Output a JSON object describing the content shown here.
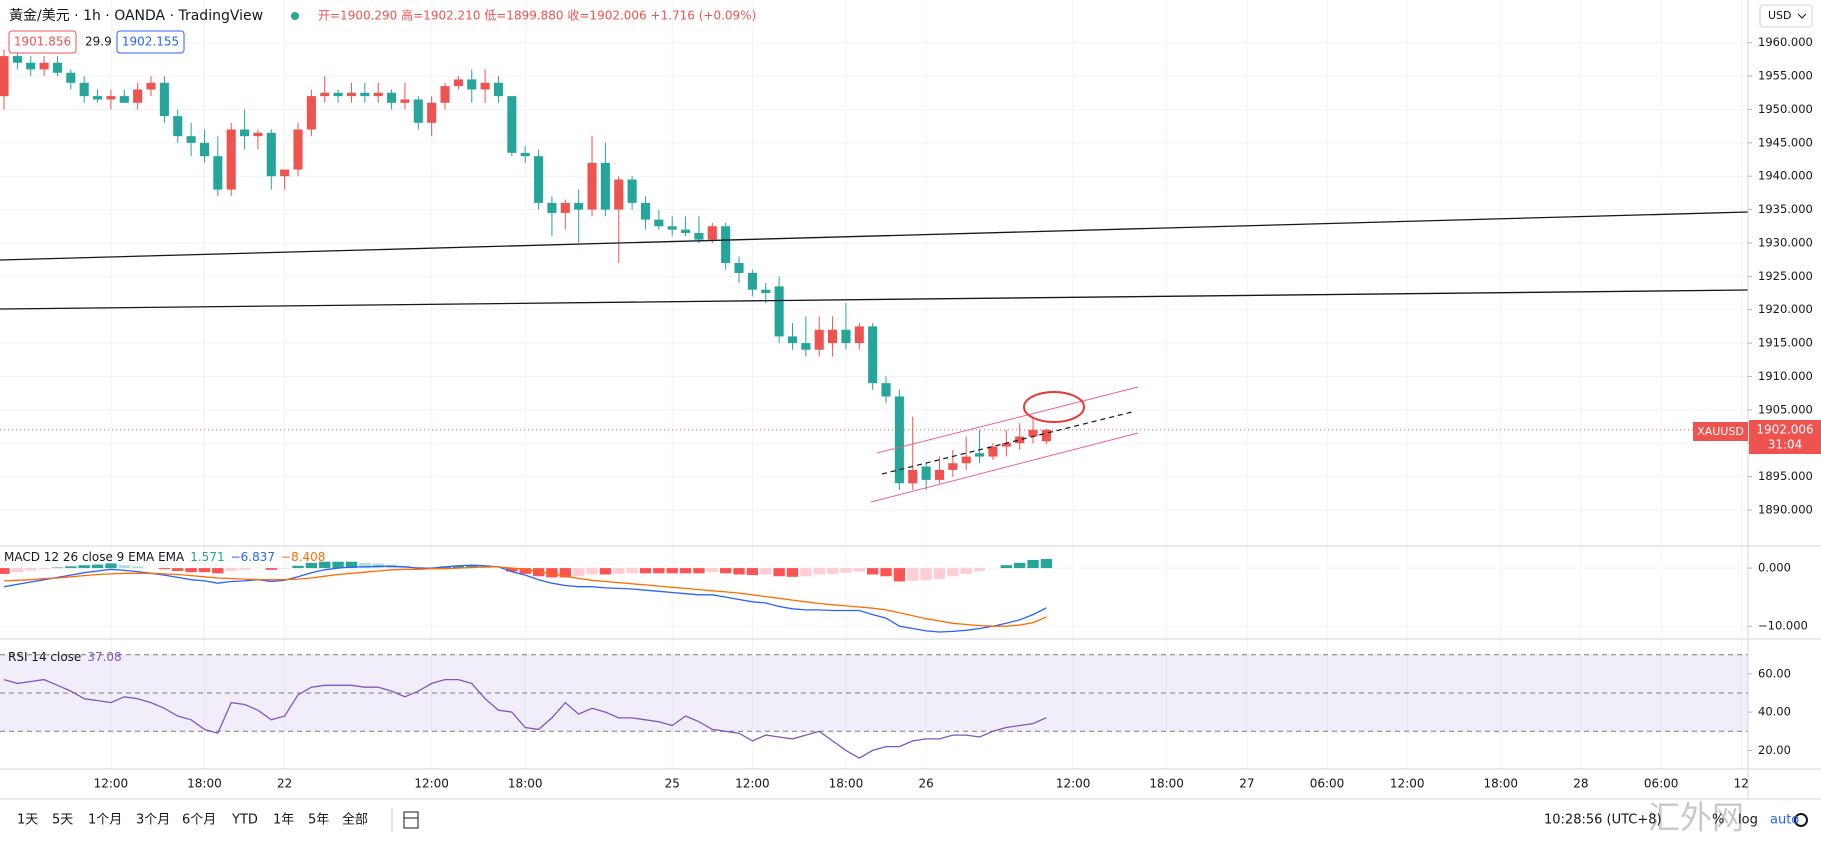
{
  "header": {
    "symbol": "黃金/美元 · 1h · OANDA · TradingView",
    "ohlc": "开=1900.290 高=1902.210 低=1899.880 收=1902.006 +1.716 (+0.09%)",
    "sell": "1901.856",
    "spread": "29.9",
    "buy": "1902.155",
    "currency": "USD",
    "ticker": "XAUUSD",
    "countdown": "31:04"
  },
  "toolbar": {
    "ranges": [
      "1天",
      "5天",
      "1个月",
      "3个月",
      "6个月",
      "YTD",
      "1年",
      "5年",
      "全部"
    ],
    "clock": "10:28:56 (UTC+8)",
    "options": [
      "%",
      "log",
      "auto"
    ]
  },
  "watermark": "汇外网",
  "chart_data": [
    {
      "type": "candlestick",
      "up_color": "#ef5350",
      "down_color": "#26a69a",
      "grid": true,
      "xlim": [
        -0.3,
        130.5
      ],
      "xticks": [
        {
          "value": 8,
          "label": "12:00"
        },
        {
          "value": 15,
          "label": "18:00"
        },
        {
          "value": 21,
          "label": "22"
        },
        {
          "value": 32,
          "label": "12:00"
        },
        {
          "value": 39,
          "label": "18:00"
        },
        {
          "value": 50,
          "label": "25"
        },
        {
          "value": 56,
          "label": "12:00"
        },
        {
          "value": 63,
          "label": "18:00"
        },
        {
          "value": 69,
          "label": "26"
        },
        {
          "value": 80,
          "label": "12:00"
        },
        {
          "value": 87,
          "label": "18:00"
        },
        {
          "value": 93,
          "label": "27"
        },
        {
          "value": 99,
          "label": "06:00"
        },
        {
          "value": 105,
          "label": "12:00"
        },
        {
          "value": 112,
          "label": "18:00"
        },
        {
          "value": 118,
          "label": "28"
        },
        {
          "value": 124,
          "label": "06:00"
        },
        {
          "value": 130,
          "label": "12"
        }
      ],
      "ylim": [
        1884.6,
        1966.4
      ],
      "yticks": [
        {
          "value": 1890,
          "label": "1890.000"
        },
        {
          "value": 1895,
          "label": "1895.000"
        },
        {
          "value": 1900,
          "label": "1900.000"
        },
        {
          "value": 1905,
          "label": "1905.000"
        },
        {
          "value": 1910,
          "label": "1910.000"
        },
        {
          "value": 1915,
          "label": "1915.000"
        },
        {
          "value": 1920,
          "label": "1920.000"
        },
        {
          "value": 1925,
          "label": "1925.000"
        },
        {
          "value": 1930,
          "label": "1930.000"
        },
        {
          "value": 1935,
          "label": "1935.000"
        },
        {
          "value": 1940,
          "label": "1940.000"
        },
        {
          "value": 1945,
          "label": "1945.000"
        },
        {
          "value": 1950,
          "label": "1950.000"
        },
        {
          "value": 1955,
          "label": "1955.000"
        },
        {
          "value": 1960,
          "label": "1960.000"
        }
      ],
      "open": [
        1952,
        1958,
        1957,
        1956,
        1957,
        1955.5,
        1954,
        1952,
        1951.5,
        1952,
        1951,
        1953,
        1954,
        1949,
        1946,
        1945,
        1943,
        1938,
        1947,
        1946,
        1946.5,
        1940,
        1941,
        1947,
        1952,
        1952.5,
        1952,
        1952.5,
        1952,
        1952.5,
        1951,
        1951.5,
        1948,
        1951,
        1953.5,
        1954.5,
        1953,
        1954,
        1952,
        1943.5,
        1943,
        1936,
        1934.5,
        1936,
        1935,
        1942,
        1935,
        1939.5,
        1936,
        1933.5,
        1932.5,
        1932,
        1931.5,
        1930.5,
        1932.5,
        1927,
        1925.5,
        1923,
        1923.5,
        1916,
        1915,
        1914,
        1915,
        1917,
        1915,
        1917.5,
        1909,
        1907,
        1894,
        1896.5,
        1894.5,
        1896,
        1897,
        1898.5,
        1898,
        1899.5,
        1900,
        1901,
        1900.29
      ],
      "high": [
        1959,
        1959,
        1958,
        1958,
        1958,
        1956,
        1955,
        1953,
        1953,
        1953,
        1954,
        1955,
        1955,
        1950,
        1948,
        1947,
        1946,
        1948,
        1950,
        1947,
        1947,
        1941,
        1948,
        1953,
        1955,
        1953,
        1954,
        1954,
        1954,
        1953,
        1954,
        1952,
        1952,
        1954,
        1955,
        1956,
        1956,
        1955,
        1952,
        1944.5,
        1944,
        1937,
        1936.5,
        1938,
        1946,
        1945,
        1940,
        1940,
        1937,
        1935,
        1934,
        1934,
        1934,
        1933,
        1933,
        1928,
        1926,
        1924,
        1925,
        1918,
        1919,
        1919,
        1919,
        1921,
        1918,
        1918,
        1910,
        1908,
        1904,
        1897,
        1898,
        1899,
        1901,
        1902,
        1900,
        1902,
        1903,
        1904,
        1902.21
      ],
      "low": [
        1950,
        1956,
        1955,
        1955,
        1955,
        1953,
        1951,
        1951,
        1950,
        1951,
        1950,
        1952,
        1948,
        1945,
        1943,
        1942,
        1937,
        1937,
        1944,
        1944,
        1938,
        1938,
        1940,
        1946,
        1951,
        1951,
        1951,
        1951,
        1951,
        1950,
        1950,
        1947,
        1946,
        1950,
        1953,
        1951,
        1951,
        1951,
        1943,
        1942,
        1935,
        1931,
        1932,
        1930,
        1934,
        1934,
        1927,
        1935,
        1932,
        1932,
        1931,
        1931,
        1930,
        1930,
        1926,
        1924,
        1922,
        1921,
        1915,
        1914,
        1913,
        1913,
        1913,
        1914,
        1914,
        1908,
        1906,
        1893,
        1893,
        1893,
        1894,
        1895,
        1896,
        1897,
        1897.5,
        1898,
        1899,
        1900,
        1899.88
      ],
      "close": [
        1958,
        1957,
        1956,
        1957,
        1955.5,
        1954,
        1952,
        1951.5,
        1952,
        1951,
        1953,
        1954,
        1949,
        1946,
        1945,
        1943,
        1938,
        1947,
        1946,
        1946.5,
        1940,
        1941,
        1947,
        1952,
        1952.5,
        1952,
        1952.5,
        1952,
        1952.5,
        1951,
        1951.5,
        1948,
        1951,
        1953.5,
        1954.5,
        1953,
        1954,
        1952,
        1943.5,
        1943,
        1936,
        1934.5,
        1936,
        1935,
        1942,
        1935,
        1939.5,
        1936,
        1933.5,
        1932.5,
        1932,
        1931.5,
        1930.5,
        1932.5,
        1927,
        1925.5,
        1923,
        1922.5,
        1916,
        1915,
        1914,
        1917,
        1917,
        1915,
        1917.5,
        1909,
        1907,
        1894,
        1896,
        1894.5,
        1896,
        1897,
        1898,
        1898,
        1899.5,
        1900,
        1901,
        1902,
        1902.006
      ]
    },
    {
      "type": "macd",
      "label": "MACD 12 26 close 9 EMA EMA",
      "readout": [
        "1.571",
        "−6.837",
        "−8.408"
      ],
      "ylim": [
        -12.2,
        3.8
      ],
      "yticks": [
        {
          "value": 0,
          "label": "0.000"
        },
        {
          "value": -10,
          "label": "−10.000"
        }
      ],
      "histogram_colors": [
        "#26a69a",
        "#b2dfdb",
        "#ffcdd2",
        "#ff5252"
      ],
      "histogram": [
        -1.0,
        -0.7,
        -0.4,
        -0.2,
        0.1,
        0.3,
        0.5,
        0.6,
        0.8,
        0.5,
        0.3,
        0,
        -0.2,
        -0.5,
        -0.7,
        -0.7,
        -0.9,
        -0.5,
        -0.3,
        0,
        -0.3,
        -0.1,
        0.4,
        0.9,
        1.1,
        1.1,
        1.1,
        0.9,
        0.8,
        0.6,
        0.4,
        0.2,
        0.1,
        0.3,
        0.4,
        0.4,
        0.2,
        0,
        -0.6,
        -1.0,
        -1.4,
        -1.6,
        -1.6,
        -1.4,
        -1.1,
        -1.1,
        -1.0,
        -0.9,
        -0.9,
        -0.9,
        -0.9,
        -0.9,
        -0.9,
        -0.7,
        -0.9,
        -1.1,
        -1.2,
        -1.1,
        -1.4,
        -1.5,
        -1.4,
        -1.1,
        -1.0,
        -0.8,
        -0.6,
        -1.1,
        -1.4,
        -2.3,
        -2.2,
        -2.1,
        -1.9,
        -1.4,
        -1.0,
        -0.5,
        0,
        0.5,
        0.9,
        1.4,
        1.571
      ],
      "series": [
        {
          "color": "#2962ff",
          "values": [
            -3.2,
            -2.8,
            -2.4,
            -2,
            -1.6,
            -1.2,
            -0.8,
            -0.5,
            -0.2,
            -0.4,
            -0.6,
            -0.9,
            -1.2,
            -1.6,
            -2.0,
            -2.2,
            -2.6,
            -2.3,
            -2.2,
            -2.0,
            -2.3,
            -2.1,
            -1.5,
            -0.8,
            -0.3,
            0,
            0.2,
            0.2,
            0.3,
            0.3,
            0.2,
            0,
            0,
            0.2,
            0.4,
            0.5,
            0.4,
            0.2,
            -0.6,
            -1.2,
            -2.0,
            -2.6,
            -3.0,
            -3.2,
            -3.2,
            -3.4,
            -3.5,
            -3.6,
            -3.8,
            -4.0,
            -4.2,
            -4.4,
            -4.6,
            -4.6,
            -5.0,
            -5.4,
            -5.8,
            -6.0,
            -6.6,
            -7.0,
            -7.2,
            -7.2,
            -7.3,
            -7.3,
            -7.3,
            -8.0,
            -8.6,
            -10.0,
            -10.4,
            -10.8,
            -11.0,
            -10.9,
            -10.7,
            -10.4,
            -10.0,
            -9.5,
            -8.9,
            -8.0,
            -6.837
          ]
        },
        {
          "color": "#ff6d00",
          "values": [
            -2.2,
            -2.1,
            -2.0,
            -1.8,
            -1.7,
            -1.5,
            -1.3,
            -1.1,
            -1.0,
            -0.9,
            -0.9,
            -0.9,
            -1.0,
            -1.1,
            -1.3,
            -1.5,
            -1.7,
            -1.8,
            -1.9,
            -2.0,
            -2.0,
            -2.0,
            -1.9,
            -1.7,
            -1.4,
            -1.1,
            -0.9,
            -0.7,
            -0.5,
            -0.3,
            -0.2,
            -0.2,
            -0.1,
            -0.1,
            0,
            0.1,
            0.2,
            0.2,
            0,
            -0.2,
            -0.6,
            -1.0,
            -1.4,
            -1.8,
            -2.1,
            -2.3,
            -2.5,
            -2.7,
            -2.9,
            -3.1,
            -3.3,
            -3.5,
            -3.7,
            -3.9,
            -4.1,
            -4.3,
            -4.6,
            -4.9,
            -5.2,
            -5.5,
            -5.8,
            -6.1,
            -6.3,
            -6.5,
            -6.7,
            -6.9,
            -7.2,
            -7.7,
            -8.2,
            -8.7,
            -9.1,
            -9.5,
            -9.7,
            -9.9,
            -10.0,
            -10.0,
            -9.8,
            -9.4,
            -8.408
          ]
        }
      ]
    },
    {
      "type": "rsi",
      "label": "RSI 14 close",
      "readout": [
        "37.08"
      ],
      "ylim": [
        10.3,
        78.2
      ],
      "yticks": [
        {
          "value": 20,
          "label": "20.00"
        },
        {
          "value": 40,
          "label": "40.00"
        },
        {
          "value": 60,
          "label": "60.00"
        }
      ],
      "band": [
        30,
        70
      ],
      "levels": [
        70,
        50,
        30
      ],
      "band_color": "#7e57c2",
      "series": [
        {
          "color": "#7e57c2",
          "values": [
            57,
            55,
            56,
            57,
            54,
            51,
            47,
            46,
            45,
            48,
            47,
            45,
            42,
            38,
            36,
            31,
            29,
            45,
            44,
            41,
            36,
            38,
            49,
            53,
            54,
            54,
            54,
            53,
            53,
            51,
            48,
            51,
            55,
            57,
            57,
            55,
            47,
            41,
            40,
            32,
            31,
            37,
            45,
            39,
            42,
            40,
            37,
            37,
            36,
            35,
            33,
            38,
            35,
            31,
            30,
            29,
            25,
            28,
            27,
            26,
            28,
            30,
            25,
            20,
            16,
            20,
            22,
            22,
            25,
            26,
            26,
            28,
            28,
            27,
            30,
            32,
            33,
            34,
            37.08
          ]
        }
      ]
    }
  ]
}
